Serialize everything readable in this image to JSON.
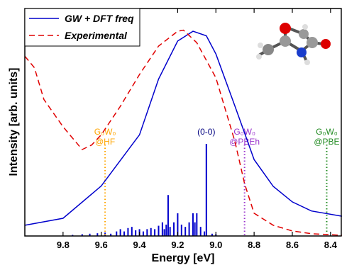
{
  "chart_data": {
    "type": "spectrum",
    "xlabel": "Energy [eV]",
    "ylabel": "Intensity [arb. units]",
    "xlim": [
      10.0,
      8.34
    ],
    "ylim": [
      0,
      1
    ],
    "xticks": [
      9.8,
      9.6,
      9.4,
      9.2,
      {
        "value": 9,
        "label": "9.0"
      },
      8.8,
      8.6,
      8.4
    ],
    "legend": "upper left",
    "series": [
      {
        "name": "GW + DFT freq",
        "color": "#0000cc",
        "style": "solid",
        "x": [
          10.0,
          9.8,
          9.6,
          9.4,
          9.3,
          9.2,
          9.12,
          9.05,
          9.0,
          8.9,
          8.8,
          8.7,
          8.6,
          8.5,
          8.34
        ],
        "values": [
          0.047,
          0.078,
          0.22,
          0.445,
          0.69,
          0.857,
          0.9,
          0.88,
          0.8,
          0.57,
          0.336,
          0.218,
          0.15,
          0.11,
          0.087
        ]
      },
      {
        "name": "Experimental",
        "color": "#e00000",
        "style": "dashed",
        "x": [
          10.0,
          9.95,
          9.9,
          9.85,
          9.8,
          9.7,
          9.65,
          9.6,
          9.5,
          9.4,
          9.3,
          9.2,
          9.17,
          9.1,
          9.0,
          8.9,
          8.85,
          8.8,
          8.7,
          8.6,
          8.5,
          8.34
        ],
        "values": [
          0.79,
          0.74,
          0.6,
          0.54,
          0.48,
          0.38,
          0.4,
          0.445,
          0.57,
          0.71,
          0.835,
          0.9,
          0.905,
          0.85,
          0.695,
          0.414,
          0.23,
          0.1,
          0.047,
          0.022,
          0.01,
          0.003
        ]
      }
    ],
    "sticks": {
      "color": "#0000cc",
      "x": [
        9.75,
        9.7,
        9.66,
        9.62,
        9.58,
        9.55,
        9.52,
        9.5,
        9.48,
        9.46,
        9.44,
        9.42,
        9.4,
        9.38,
        9.36,
        9.34,
        9.32,
        9.3,
        9.28,
        9.27,
        9.26,
        9.25,
        9.24,
        9.22,
        9.2,
        9.18,
        9.16,
        9.14,
        9.12,
        9.11,
        9.1,
        9.08,
        9.06,
        9.05,
        9.02,
        9.0
      ],
      "values": [
        0.005,
        0.008,
        0.01,
        0.012,
        0.015,
        0.01,
        0.02,
        0.03,
        0.02,
        0.035,
        0.04,
        0.025,
        0.03,
        0.02,
        0.03,
        0.035,
        0.03,
        0.045,
        0.06,
        0.03,
        0.05,
        0.18,
        0.04,
        0.06,
        0.1,
        0.05,
        0.04,
        0.06,
        0.1,
        0.06,
        0.1,
        0.04,
        0.02,
        0.405,
        0.01,
        0.008
      ]
    },
    "peak_label": {
      "text": "(0-0)",
      "x": 9.05,
      "color": "#000080"
    },
    "markers": [
      {
        "x": 9.58,
        "lines": [
          "G₀W₀",
          "@HF"
        ],
        "color": "#ffa500"
      },
      {
        "x": 8.85,
        "lines": [
          "G₀W₀",
          "@PBEh"
        ],
        "color": "#9932cc"
      },
      {
        "x": 8.42,
        "lines": [
          "G₀W₀",
          "@PBE"
        ],
        "color": "#228b22"
      }
    ]
  }
}
